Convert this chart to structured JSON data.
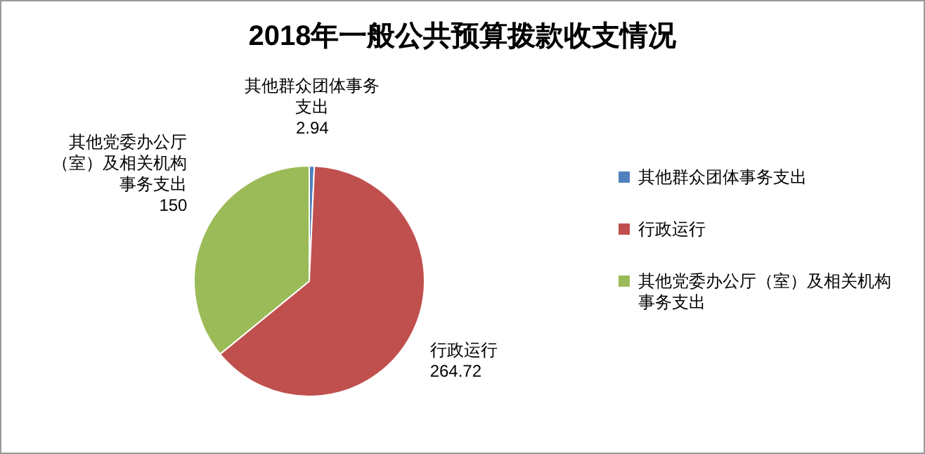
{
  "chart_data": {
    "type": "pie",
    "title": "2018年一般公共预算拨款收支情况",
    "categories": [
      "其他群众团体事务支出",
      "行政运行",
      "其他党委办公厅（室）及相关机构事务支出"
    ],
    "values": [
      2.94,
      264.72,
      150
    ],
    "colors": [
      "#4f81bd",
      "#c0504d",
      "#9bbb59"
    ],
    "data_labels": true,
    "legend": "right"
  }
}
